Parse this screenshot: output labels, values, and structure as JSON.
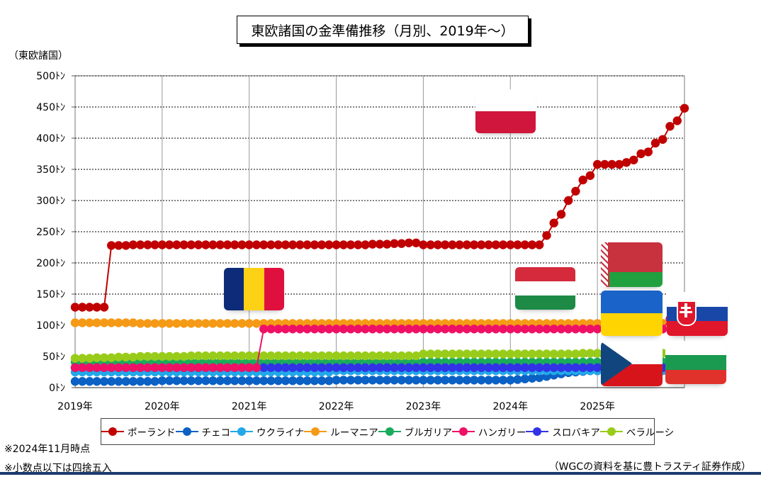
{
  "title": "東欧諸国の金準備推移（月別、2019年～）",
  "y_unit_label": "（東欧諸国）",
  "notes": [
    "※2024年11月時点",
    "※小数点以下は四捨五入"
  ],
  "source": "（WGCの資料を基に豊トラスティ証券作成）",
  "flags": [
    "poland-flag",
    "romania-flag",
    "hungary-flag",
    "belarus-flag",
    "ukraine-flag",
    "slovakia-flag",
    "czech-flag",
    "bulgaria-flag"
  ],
  "chart_data": {
    "type": "line",
    "title": "東欧諸国の金準備推移（月別、2019年～）",
    "ylabel": "（東欧諸国）",
    "ylim": [
      0,
      500
    ],
    "yticks": [
      0,
      50,
      100,
      150,
      200,
      250,
      300,
      350,
      400,
      450,
      500
    ],
    "ytick_labels": [
      "0ﾄﾝ",
      "50ﾄﾝ",
      "100ﾄﾝ",
      "150ﾄﾝ",
      "200ﾄﾝ",
      "250ﾄﾝ",
      "300ﾄﾝ",
      "350ﾄﾝ",
      "400ﾄﾝ",
      "450ﾄﾝ",
      "500ﾄﾝ"
    ],
    "xlim": [
      2019,
      2026
    ],
    "xticks": [
      2019,
      2020,
      2021,
      2022,
      2023,
      2024,
      2025
    ],
    "xtick_labels": [
      "2019年",
      "2020年",
      "2021年",
      "2022年",
      "2023年",
      "2024年",
      "2025年"
    ],
    "grid": true,
    "legend_position": "bottom",
    "start_month": "2019-01",
    "series": [
      {
        "name": "ポーランド",
        "color": "#c00000",
        "values": [
          129,
          129,
          129,
          129,
          129,
          228,
          228,
          228,
          229,
          229,
          229,
          229,
          229,
          229,
          229,
          229,
          229,
          229,
          229,
          229,
          229,
          229,
          229,
          229,
          229,
          229,
          229,
          229,
          229,
          229,
          229,
          229,
          229,
          229,
          229,
          229,
          229,
          229,
          229,
          229,
          229,
          230,
          230,
          230,
          231,
          231,
          232,
          232,
          229,
          229,
          229,
          229,
          229,
          229,
          229,
          229,
          229,
          229,
          229,
          229,
          229,
          229,
          229,
          229,
          229,
          244,
          264,
          278,
          300,
          315,
          333,
          340,
          358,
          358,
          358,
          358,
          361,
          365,
          375,
          378,
          392,
          398,
          419,
          428,
          448
        ]
      },
      {
        "name": "チェコ",
        "color": "#0b61c4",
        "values": [
          10,
          10,
          10,
          10,
          10,
          10,
          10,
          10,
          10,
          10,
          10,
          10,
          11,
          11,
          11,
          11,
          11,
          11,
          11,
          11,
          11,
          11,
          11,
          11,
          11,
          11,
          11,
          11,
          11,
          11,
          11,
          11,
          11,
          11,
          11,
          11,
          12,
          12,
          12,
          12,
          12,
          12,
          12,
          12,
          12,
          12,
          12,
          12,
          12,
          12,
          12,
          12,
          12,
          12,
          12,
          12,
          12,
          12,
          12,
          12,
          12,
          13,
          14,
          15,
          16,
          18,
          20,
          22,
          24,
          25,
          26,
          27,
          27,
          28,
          28,
          29,
          30,
          31,
          32,
          33,
          33,
          34,
          35,
          36,
          38
        ]
      },
      {
        "name": "ウクライナ",
        "color": "#22a8e8",
        "values": [
          25,
          25,
          25,
          25,
          25,
          25,
          25,
          25,
          25,
          25,
          25,
          25,
          25,
          25,
          25,
          25,
          25,
          25,
          25,
          25,
          25,
          25,
          25,
          25,
          25,
          25,
          25,
          25,
          25,
          25,
          25,
          25,
          25,
          25,
          25,
          25,
          27,
          27,
          27,
          27,
          27,
          27,
          27,
          27,
          27,
          27,
          27,
          27,
          27,
          27,
          27,
          27,
          27,
          27,
          27,
          27,
          27,
          27,
          27,
          27,
          27,
          27,
          27,
          27,
          27,
          27,
          27,
          27,
          27,
          27,
          27,
          27,
          27,
          27,
          27,
          27,
          27,
          27,
          27,
          27,
          27,
          27,
          27,
          27,
          27
        ]
      },
      {
        "name": "ルーマニア",
        "color": "#f59a16",
        "values": [
          104,
          104,
          104,
          104,
          104,
          104,
          104,
          104,
          104,
          103,
          103,
          103,
          103,
          103,
          103,
          103,
          103,
          103,
          103,
          103,
          103,
          103,
          103,
          103,
          103,
          103,
          103,
          103,
          103,
          103,
          103,
          103,
          103,
          103,
          103,
          103,
          103,
          103,
          103,
          103,
          103,
          103,
          103,
          103,
          103,
          103,
          103,
          103,
          103,
          103,
          103,
          103,
          103,
          103,
          103,
          103,
          103,
          103,
          103,
          103,
          103,
          103,
          103,
          103,
          103,
          103,
          103,
          103,
          103,
          103,
          103,
          103,
          103,
          103,
          103,
          103,
          103,
          103,
          103,
          103,
          103,
          103,
          103,
          103,
          104
        ]
      },
      {
        "name": "ブルガリア",
        "color": "#1aab5c",
        "values": [
          41,
          41,
          41,
          41,
          41,
          41,
          41,
          41,
          41,
          41,
          41,
          41,
          41,
          41,
          41,
          41,
          41,
          41,
          41,
          41,
          41,
          41,
          41,
          41,
          41,
          41,
          41,
          41,
          41,
          41,
          41,
          41,
          41,
          41,
          41,
          41,
          41,
          41,
          41,
          41,
          41,
          41,
          41,
          41,
          41,
          41,
          41,
          41,
          41,
          41,
          41,
          41,
          41,
          41,
          41,
          41,
          41,
          41,
          41,
          41,
          41,
          41,
          41,
          41,
          41,
          41,
          41,
          41,
          41,
          41,
          41,
          41,
          41,
          41,
          41,
          41,
          41,
          41,
          41,
          41,
          41,
          41,
          41,
          41,
          41
        ]
      },
      {
        "name": "ハンガリー",
        "color": "#ee1166",
        "values": [
          32,
          32,
          32,
          32,
          32,
          32,
          32,
          32,
          32,
          32,
          32,
          32,
          32,
          32,
          32,
          32,
          32,
          32,
          32,
          32,
          32,
          32,
          32,
          32,
          32,
          32,
          94,
          94,
          94,
          94,
          94,
          94,
          94,
          94,
          94,
          94,
          94,
          94,
          94,
          94,
          94,
          94,
          94,
          94,
          94,
          94,
          94,
          94,
          94,
          94,
          94,
          94,
          94,
          94,
          94,
          94,
          94,
          94,
          94,
          94,
          94,
          94,
          94,
          94,
          94,
          94,
          94,
          94,
          94,
          94,
          94,
          94,
          94,
          94,
          94,
          94,
          94,
          94,
          94,
          94,
          94,
          94,
          110,
          110,
          110
        ]
      },
      {
        "name": "スロバキア",
        "color": "#3232e6",
        "values": [
          32,
          32,
          32,
          32,
          32,
          32,
          32,
          32,
          32,
          32,
          32,
          32,
          32,
          32,
          32,
          32,
          32,
          32,
          32,
          32,
          32,
          32,
          32,
          32,
          32,
          32,
          32,
          32,
          32,
          32,
          32,
          32,
          32,
          32,
          32,
          32,
          32,
          32,
          32,
          32,
          32,
          32,
          32,
          32,
          32,
          32,
          32,
          32,
          32,
          32,
          32,
          32,
          32,
          32,
          32,
          32,
          32,
          32,
          32,
          32,
          32,
          32,
          32,
          32,
          32,
          32,
          32,
          32,
          32,
          32,
          32,
          32,
          32,
          32,
          32,
          32,
          32,
          32,
          32,
          32,
          32,
          32,
          32,
          32,
          32
        ]
      },
      {
        "name": "ベラルーシ",
        "color": "#99cc1a",
        "values": [
          47,
          47,
          47,
          48,
          48,
          48,
          49,
          49,
          49,
          50,
          50,
          50,
          50,
          50,
          50,
          50,
          51,
          51,
          51,
          51,
          51,
          51,
          51,
          51,
          51,
          51,
          51,
          51,
          51,
          51,
          51,
          51,
          51,
          51,
          51,
          51,
          51,
          51,
          51,
          51,
          51,
          51,
          51,
          51,
          51,
          51,
          51,
          51,
          54,
          54,
          54,
          54,
          54,
          54,
          54,
          54,
          54,
          54,
          54,
          54,
          54,
          54,
          54,
          54,
          54,
          54,
          54,
          54,
          54,
          54,
          55,
          55,
          55,
          55,
          55,
          55,
          55,
          55,
          55,
          55,
          55,
          55,
          55,
          55,
          55
        ]
      }
    ]
  }
}
